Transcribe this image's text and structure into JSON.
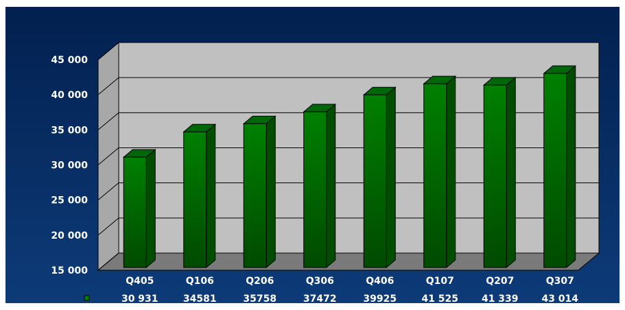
{
  "chart_data": {
    "type": "bar",
    "categories": [
      "Q405",
      "Q106",
      "Q206",
      "Q306",
      "Q406",
      "Q107",
      "Q207",
      "Q307"
    ],
    "series": [
      {
        "values": [
          30931,
          34581,
          35758,
          37472,
          39925,
          41525,
          41339,
          43014
        ],
        "value_labels": [
          "30 931",
          "34581",
          "35758",
          "37472",
          "39925",
          "41 525",
          "41 339",
          "43 014"
        ]
      }
    ],
    "ylim": [
      15000,
      45000
    ],
    "yticks": [
      15000,
      20000,
      25000,
      30000,
      35000,
      40000,
      45000
    ],
    "ytick_labels": [
      "15 000",
      "20 000",
      "25 000",
      "30 000",
      "35 000",
      "40 000",
      "45 000"
    ],
    "grid": true,
    "three_d": true,
    "data_table": true,
    "colors": {
      "background_top": "#02204f",
      "background_bottom": "#0d3b78",
      "wall": "#c0c0c0",
      "side_wall": "#a8a8a8",
      "floor": "#7a7a7a",
      "bar_front": "#008000",
      "bar_side": "#004d00",
      "bar_top": "#00660a",
      "legend_key": "#008000",
      "text": "#ffffff"
    }
  }
}
